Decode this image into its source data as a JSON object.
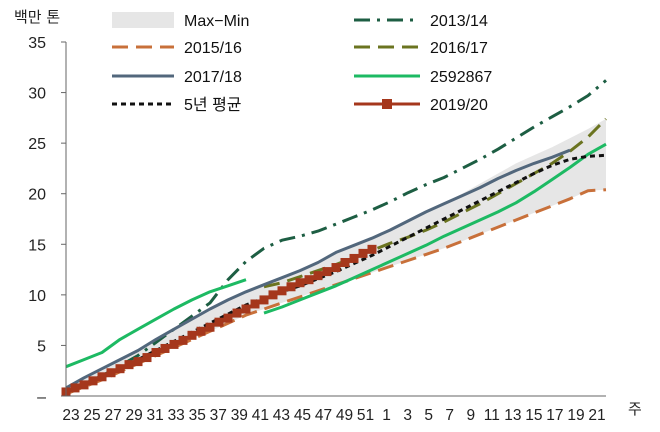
{
  "chart_data": {
    "type": "line",
    "ylabel": "백만 톤",
    "xlabel": "주",
    "ylim": [
      0,
      35
    ],
    "yticks": [
      0,
      5,
      10,
      15,
      20,
      25,
      30,
      35
    ],
    "ytick_labels": [
      "–",
      "5",
      "10",
      "15",
      "20",
      "25",
      "30",
      "35"
    ],
    "x_ticks": [
      "23",
      "25",
      "27",
      "29",
      "31",
      "33",
      "35",
      "37",
      "39",
      "41",
      "43",
      "45",
      "47",
      "49",
      "51",
      "1",
      "3",
      "5",
      "7",
      "9",
      "11",
      "13",
      "15",
      "17",
      "19",
      "21"
    ],
    "legend_position": "top",
    "grid": false,
    "band": {
      "name": "Max−Min",
      "color": "#e6e6e6",
      "lower": [
        [
          0,
          0.2
        ],
        [
          2,
          0.9
        ],
        [
          4,
          1.6
        ],
        [
          6,
          2.4
        ],
        [
          8,
          3.2
        ],
        [
          10,
          4.0
        ],
        [
          12,
          4.8
        ],
        [
          14,
          5.6
        ],
        [
          16,
          6.4
        ],
        [
          18,
          7.2
        ],
        [
          20,
          8.0
        ],
        [
          22,
          8.6
        ],
        [
          24,
          9.2
        ],
        [
          26,
          9.8
        ],
        [
          28,
          10.4
        ],
        [
          30,
          11.0
        ],
        [
          32,
          11.6
        ],
        [
          34,
          12.2
        ],
        [
          36,
          12.8
        ],
        [
          38,
          13.4
        ],
        [
          40,
          14.0
        ],
        [
          42,
          14.6
        ],
        [
          44,
          15.3
        ],
        [
          46,
          16.0
        ],
        [
          48,
          16.7
        ],
        [
          50,
          17.4
        ],
        [
          52,
          18.1
        ],
        [
          54,
          18.8
        ],
        [
          56,
          19.5
        ],
        [
          58,
          20.3
        ],
        [
          60,
          20.4
        ]
      ],
      "upper": [
        [
          0,
          0.8
        ],
        [
          2,
          1.8
        ],
        [
          4,
          2.7
        ],
        [
          6,
          3.6
        ],
        [
          8,
          4.5
        ],
        [
          10,
          5.6
        ],
        [
          12,
          6.6
        ],
        [
          14,
          7.6
        ],
        [
          16,
          8.6
        ],
        [
          18,
          9.5
        ],
        [
          20,
          10.3
        ],
        [
          22,
          11.0
        ],
        [
          24,
          11.7
        ],
        [
          26,
          12.4
        ],
        [
          28,
          13.2
        ],
        [
          30,
          14.2
        ],
        [
          32,
          14.9
        ],
        [
          34,
          15.6
        ],
        [
          36,
          16.4
        ],
        [
          38,
          17.3
        ],
        [
          40,
          18.2
        ],
        [
          42,
          19.1
        ],
        [
          44,
          20.0
        ],
        [
          46,
          21.0
        ],
        [
          48,
          22.0
        ],
        [
          50,
          23.0
        ],
        [
          52,
          23.8
        ],
        [
          54,
          24.6
        ],
        [
          56,
          25.5
        ],
        [
          58,
          26.4
        ],
        [
          60,
          27.4
        ]
      ]
    },
    "series": [
      {
        "name": "2013/14",
        "color": "#1d5e43",
        "dash": "dashdot",
        "points": [
          [
            0,
            0.5
          ],
          [
            2,
            1.2
          ],
          [
            4,
            2.0
          ],
          [
            6,
            3.0
          ],
          [
            8,
            4.0
          ],
          [
            10,
            5.3
          ],
          [
            12,
            6.6
          ],
          [
            14,
            7.9
          ],
          [
            16,
            9.2
          ],
          [
            18,
            11.5
          ],
          [
            20,
            13.3
          ],
          [
            22,
            14.6
          ],
          [
            24,
            15.4
          ],
          [
            26,
            15.8
          ],
          [
            28,
            16.3
          ],
          [
            30,
            17.0
          ],
          [
            32,
            17.7
          ],
          [
            34,
            18.4
          ],
          [
            36,
            19.2
          ],
          [
            38,
            20.1
          ],
          [
            40,
            20.9
          ],
          [
            42,
            21.6
          ],
          [
            44,
            22.5
          ],
          [
            46,
            23.4
          ],
          [
            48,
            24.4
          ],
          [
            50,
            25.5
          ],
          [
            52,
            26.6
          ],
          [
            54,
            27.6
          ],
          [
            56,
            28.6
          ],
          [
            58,
            29.7
          ],
          [
            60,
            31.2
          ]
        ]
      },
      {
        "name": "2015/16",
        "color": "#c8703a",
        "dash": "longdash",
        "points": [
          [
            0,
            0.2
          ],
          [
            2,
            0.9
          ],
          [
            4,
            1.6
          ],
          [
            6,
            2.4
          ],
          [
            8,
            3.2
          ],
          [
            10,
            4.0
          ],
          [
            12,
            4.8
          ],
          [
            14,
            5.6
          ],
          [
            16,
            6.4
          ],
          [
            18,
            7.2
          ],
          [
            20,
            8.0
          ],
          [
            22,
            8.6
          ],
          [
            24,
            9.2
          ],
          [
            26,
            9.8
          ],
          [
            28,
            10.4
          ],
          [
            30,
            11.0
          ],
          [
            32,
            11.6
          ],
          [
            34,
            12.2
          ],
          [
            36,
            12.8
          ],
          [
            38,
            13.4
          ],
          [
            40,
            14.0
          ],
          [
            42,
            14.6
          ],
          [
            44,
            15.3
          ],
          [
            46,
            16.0
          ],
          [
            48,
            16.7
          ],
          [
            50,
            17.4
          ],
          [
            52,
            18.1
          ],
          [
            54,
            18.8
          ],
          [
            56,
            19.5
          ],
          [
            58,
            20.3
          ],
          [
            60,
            20.4
          ]
        ]
      },
      {
        "name": "2016/17",
        "color": "#6b7420",
        "dash": "longdash",
        "points": [
          [
            22,
            10.8
          ],
          [
            24,
            11.2
          ],
          [
            26,
            11.8
          ],
          [
            28,
            12.4
          ],
          [
            30,
            13.0
          ],
          [
            32,
            13.7
          ],
          [
            34,
            14.4
          ],
          [
            36,
            15.1
          ],
          [
            38,
            15.7
          ],
          [
            40,
            16.4
          ],
          [
            42,
            17.2
          ],
          [
            44,
            18.1
          ],
          [
            46,
            19.0
          ],
          [
            48,
            20.0
          ],
          [
            50,
            21.0
          ],
          [
            52,
            22.0
          ],
          [
            54,
            23.0
          ],
          [
            56,
            24.2
          ],
          [
            58,
            25.6
          ],
          [
            60,
            27.4
          ]
        ]
      },
      {
        "name": "2017/18",
        "color": "#52677c",
        "dash": "solid",
        "points": [
          [
            0,
            0.8
          ],
          [
            2,
            1.8
          ],
          [
            4,
            2.7
          ],
          [
            6,
            3.6
          ],
          [
            8,
            4.5
          ],
          [
            10,
            5.6
          ],
          [
            12,
            6.6
          ],
          [
            14,
            7.6
          ],
          [
            16,
            8.6
          ],
          [
            18,
            9.5
          ],
          [
            20,
            10.3
          ],
          [
            22,
            11.0
          ],
          [
            24,
            11.7
          ],
          [
            26,
            12.4
          ],
          [
            28,
            13.2
          ],
          [
            30,
            14.2
          ],
          [
            32,
            14.9
          ],
          [
            34,
            15.6
          ],
          [
            36,
            16.4
          ],
          [
            38,
            17.3
          ],
          [
            40,
            18.2
          ],
          [
            42,
            19.0
          ],
          [
            44,
            19.8
          ],
          [
            46,
            20.6
          ],
          [
            48,
            21.5
          ],
          [
            50,
            22.3
          ],
          [
            52,
            23.0
          ],
          [
            54,
            23.6
          ],
          [
            56,
            24.3
          ]
        ]
      },
      {
        "name": "2592867",
        "color": "#1dba63",
        "dash": "solid",
        "points": [
          [
            0,
            2.9
          ],
          [
            2,
            3.6
          ],
          [
            4,
            4.3
          ],
          [
            6,
            5.6
          ],
          [
            8,
            6.6
          ],
          [
            10,
            7.6
          ],
          [
            12,
            8.6
          ],
          [
            14,
            9.5
          ],
          [
            16,
            10.3
          ],
          [
            18,
            10.9
          ],
          [
            20,
            11.5
          ],
          [
            22,
            null
          ],
          [
            22,
            8.2
          ],
          [
            24,
            8.8
          ],
          [
            26,
            9.5
          ],
          [
            28,
            10.2
          ],
          [
            30,
            10.9
          ],
          [
            32,
            11.7
          ],
          [
            34,
            12.5
          ],
          [
            36,
            13.3
          ],
          [
            38,
            14.1
          ],
          [
            40,
            14.9
          ],
          [
            42,
            15.8
          ],
          [
            44,
            16.6
          ],
          [
            46,
            17.4
          ],
          [
            48,
            18.2
          ],
          [
            50,
            19.1
          ],
          [
            52,
            20.2
          ],
          [
            54,
            21.4
          ],
          [
            56,
            22.6
          ],
          [
            58,
            23.9
          ],
          [
            60,
            24.9
          ]
        ]
      },
      {
        "name": "5년 평균",
        "color": "#111111",
        "dash": "dotted",
        "points": [
          [
            0,
            0.4
          ],
          [
            2,
            1.1
          ],
          [
            4,
            1.9
          ],
          [
            6,
            2.7
          ],
          [
            8,
            3.6
          ],
          [
            10,
            4.5
          ],
          [
            12,
            5.4
          ],
          [
            14,
            6.3
          ],
          [
            16,
            7.2
          ],
          [
            18,
            8.1
          ],
          [
            20,
            9.0
          ],
          [
            22,
            9.7
          ],
          [
            24,
            10.3
          ],
          [
            26,
            10.9
          ],
          [
            28,
            11.6
          ],
          [
            30,
            12.3
          ],
          [
            32,
            13.1
          ],
          [
            34,
            13.9
          ],
          [
            36,
            14.8
          ],
          [
            38,
            15.7
          ],
          [
            40,
            16.6
          ],
          [
            42,
            17.5
          ],
          [
            44,
            18.4
          ],
          [
            46,
            19.3
          ],
          [
            48,
            20.2
          ],
          [
            50,
            21.1
          ],
          [
            52,
            22.0
          ],
          [
            54,
            22.8
          ],
          [
            56,
            23.4
          ],
          [
            58,
            23.7
          ],
          [
            60,
            23.8
          ]
        ]
      },
      {
        "name": "2019/20",
        "color": "#a5371c",
        "dash": "solid",
        "markers": true,
        "points": [
          [
            0,
            0.4
          ],
          [
            1,
            0.8
          ],
          [
            2,
            1.1
          ],
          [
            3,
            1.5
          ],
          [
            4,
            1.9
          ],
          [
            5,
            2.3
          ],
          [
            6,
            2.7
          ],
          [
            7,
            3.1
          ],
          [
            8,
            3.4
          ],
          [
            9,
            3.8
          ],
          [
            10,
            4.3
          ],
          [
            11,
            4.7
          ],
          [
            12,
            5.1
          ],
          [
            13,
            5.5
          ],
          [
            14,
            6.0
          ],
          [
            15,
            6.4
          ],
          [
            16,
            6.8
          ],
          [
            17,
            7.3
          ],
          [
            18,
            7.7
          ],
          [
            19,
            8.2
          ],
          [
            20,
            8.6
          ],
          [
            21,
            9.1
          ],
          [
            22,
            9.5
          ],
          [
            23,
            10.0
          ],
          [
            24,
            10.4
          ],
          [
            25,
            10.8
          ],
          [
            26,
            11.2
          ],
          [
            27,
            11.5
          ],
          [
            28,
            11.9
          ],
          [
            29,
            12.3
          ],
          [
            30,
            12.7
          ],
          [
            31,
            13.2
          ],
          [
            32,
            13.6
          ],
          [
            33,
            14.1
          ],
          [
            34,
            14.5
          ]
        ]
      }
    ],
    "legend": [
      {
        "label": "Max−Min",
        "type": "band",
        "color": "#e6e6e6"
      },
      {
        "label": "2013/14",
        "type": "line",
        "color": "#1d5e43",
        "dash": "dashdot"
      },
      {
        "label": "2015/16",
        "type": "line",
        "color": "#c8703a",
        "dash": "longdash"
      },
      {
        "label": "2016/17",
        "type": "line",
        "color": "#6b7420",
        "dash": "longdash"
      },
      {
        "label": "2017/18",
        "type": "line",
        "color": "#52677c",
        "dash": "solid"
      },
      {
        "label": "2592867",
        "type": "line",
        "color": "#1dba63",
        "dash": "solid"
      },
      {
        "label": "5년 평균",
        "type": "line",
        "color": "#111111",
        "dash": "dotted"
      },
      {
        "label": "2019/20",
        "type": "line",
        "color": "#a5371c",
        "dash": "solid",
        "markers": true
      }
    ]
  }
}
